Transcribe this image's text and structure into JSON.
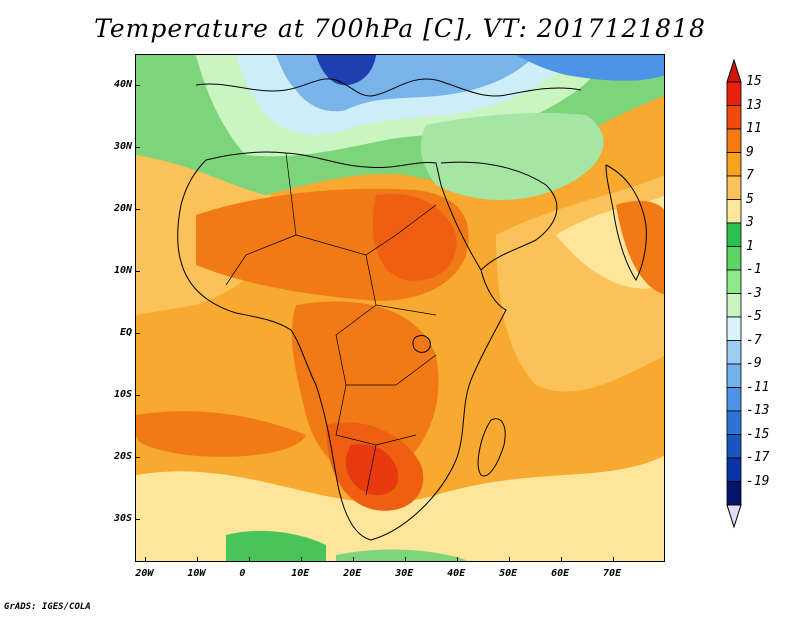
{
  "title": "Temperature at 700hPa [C], VT: 2017121818",
  "credit": "GrADS: IGES/COLA",
  "axes": {
    "x_ticks": [
      {
        "label": "20W",
        "lon": -20
      },
      {
        "label": "10W",
        "lon": -10
      },
      {
        "label": "0",
        "lon": 0
      },
      {
        "label": "10E",
        "lon": 10
      },
      {
        "label": "20E",
        "lon": 20
      },
      {
        "label": "30E",
        "lon": 30
      },
      {
        "label": "40E",
        "lon": 40
      },
      {
        "label": "50E",
        "lon": 50
      },
      {
        "label": "60E",
        "lon": 60
      },
      {
        "label": "70E",
        "lon": 70
      }
    ],
    "y_ticks": [
      {
        "label": "40N",
        "lat": 40
      },
      {
        "label": "30N",
        "lat": 30
      },
      {
        "label": "20N",
        "lat": 20
      },
      {
        "label": "10N",
        "lat": 10
      },
      {
        "label": "EQ",
        "lat": 0
      },
      {
        "label": "10S",
        "lat": -10
      },
      {
        "label": "20S",
        "lat": -20
      },
      {
        "label": "30S",
        "lat": -30
      }
    ],
    "lon_range": [
      -22,
      80
    ],
    "lat_range": [
      -37,
      45
    ]
  },
  "colorbar": {
    "labels": [
      "15",
      "13",
      "11",
      "9",
      "7",
      "5",
      "3",
      "1",
      "-1",
      "-3",
      "-5",
      "-7",
      "-9",
      "-11",
      "-13",
      "-15",
      "-17",
      "-19"
    ],
    "colors": [
      "#e8200c",
      "#f04a10",
      "#f57a14",
      "#f9a21f",
      "#fbc25a",
      "#fde69a",
      "#2ec050",
      "#5ad663",
      "#8ee88a",
      "#c8f5c0",
      "#dcf2fa",
      "#9ccdf2",
      "#72b1ec",
      "#4e94e4",
      "#2f73d8",
      "#1a55c4",
      "#0c34a6",
      "#06146e"
    ],
    "top_color": "#d0160a",
    "bottom_color": "#e4dcfb"
  },
  "map": {
    "ocean_base": "#f8a930",
    "regions": [
      {
        "name": "north-cold-band",
        "color": "#7ed47a"
      },
      {
        "name": "europe-cold",
        "color": "#cdeef6"
      },
      {
        "name": "europe-blue",
        "color": "#78b4ea"
      },
      {
        "name": "greece-deep-blue",
        "color": "#1d3fb0"
      },
      {
        "name": "arabia-green",
        "color": "#a6e6a4"
      },
      {
        "name": "sahel-hot",
        "color": "#f27a16"
      },
      {
        "name": "sudan-hot",
        "color": "#ee5f12"
      },
      {
        "name": "south-africa-hot",
        "color": "#e83a10"
      },
      {
        "name": "indian-ocean-light",
        "color": "#fcd56a"
      },
      {
        "name": "southern-green",
        "color": "#49c459"
      }
    ]
  }
}
